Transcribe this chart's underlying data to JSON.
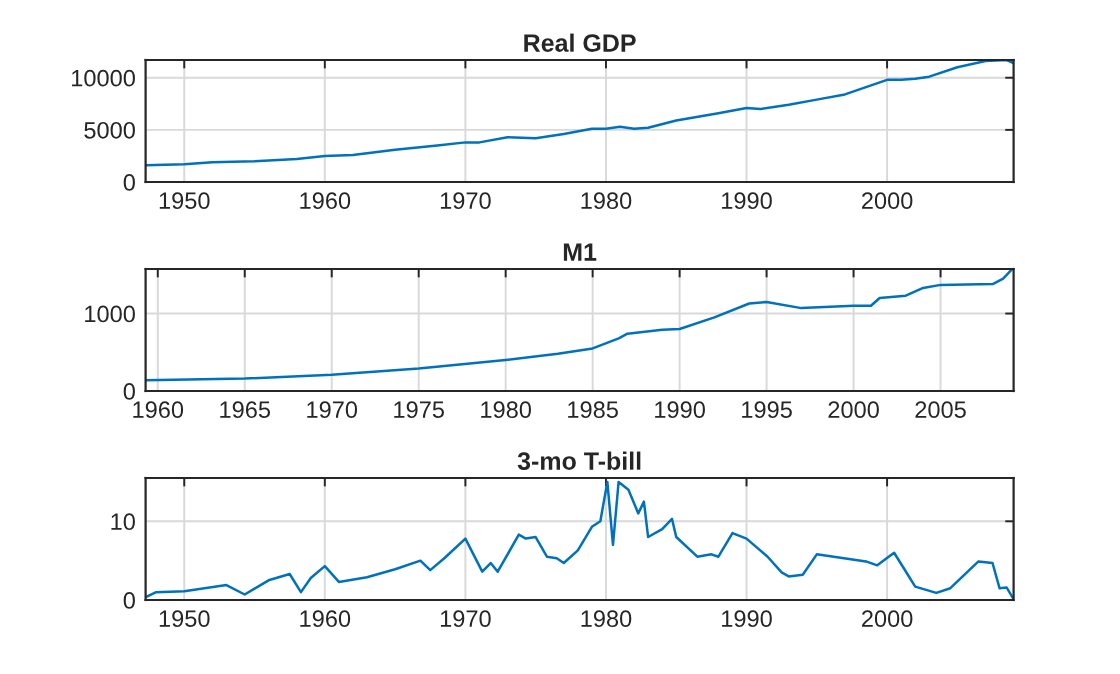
{
  "chart_data": [
    {
      "type": "line",
      "title": "Real GDP",
      "x": [
        1947.25,
        1950,
        1952,
        1955,
        1958,
        1960,
        1962,
        1965,
        1968,
        1970,
        1971,
        1973,
        1975,
        1977,
        1979,
        1980,
        1981,
        1982,
        1983,
        1985,
        1988,
        1990,
        1991,
        1993,
        1995,
        1997,
        2000,
        2001,
        2002,
        2003,
        2005,
        2007,
        2008.5,
        2009
      ],
      "series": [
        {
          "color": "#0072bd",
          "values": [
            1600,
            1700,
            1900,
            2000,
            2200,
            2500,
            2600,
            3100,
            3500,
            3800,
            3800,
            4300,
            4200,
            4600,
            5100,
            5100,
            5300,
            5100,
            5200,
            5900,
            6600,
            7100,
            7000,
            7400,
            7900,
            8400,
            9800,
            9800,
            9900,
            10100,
            11000,
            11600,
            11700,
            11400
          ]
        }
      ],
      "xlim": [
        1947.25,
        2009.0
      ],
      "ylim": [
        0,
        11700
      ],
      "xticks": [
        1950,
        1960,
        1970,
        1980,
        1990,
        2000
      ],
      "yticks": [
        0,
        5000,
        10000
      ],
      "grid": true
    },
    {
      "type": "line",
      "title": "M1",
      "x": [
        1959.3,
        1965,
        1970,
        1975,
        1980,
        1983,
        1985,
        1986.5,
        1987,
        1989,
        1990,
        1992,
        1994,
        1995,
        1997,
        2000,
        2001,
        2001.5,
        2003,
        2004,
        2005,
        2008,
        2008.6,
        2009.1
      ],
      "series": [
        {
          "color": "#0072bd",
          "values": [
            140,
            160,
            210,
            290,
            400,
            480,
            550,
            680,
            740,
            790,
            800,
            950,
            1130,
            1150,
            1070,
            1100,
            1100,
            1200,
            1230,
            1330,
            1370,
            1380,
            1450,
            1570
          ]
        }
      ],
      "xlim": [
        1959.3,
        2009.2
      ],
      "ylim": [
        0,
        1575
      ],
      "xticks": [
        1960,
        1965,
        1970,
        1975,
        1980,
        1985,
        1990,
        1995,
        2000,
        2005
      ],
      "yticks": [
        0,
        1000
      ],
      "grid": true
    },
    {
      "type": "line",
      "title": "3-mo T-bill",
      "x": [
        1947.3,
        1948,
        1950,
        1953,
        1954.3,
        1956,
        1957.5,
        1958.3,
        1959,
        1960,
        1961,
        1963,
        1965,
        1966.8,
        1967.5,
        1968.5,
        1970,
        1971.2,
        1971.8,
        1972.3,
        1973.8,
        1974.3,
        1975,
        1975.8,
        1976.5,
        1977,
        1978,
        1979,
        1979.6,
        1980.1,
        1980.5,
        1980.9,
        1981.6,
        1982.3,
        1982.7,
        1983,
        1984,
        1984.7,
        1985,
        1986.5,
        1987.5,
        1988,
        1989,
        1990,
        1991.5,
        1992.5,
        1993,
        1994,
        1995,
        1998.5,
        1999.3,
        2000.5,
        2001.2,
        2002,
        2003.5,
        2004.5,
        2006.5,
        2007.5,
        2008,
        2008.5,
        2009
      ],
      "series": [
        {
          "color": "#0072bd",
          "values": [
            0.4,
            1.0,
            1.1,
            1.9,
            0.7,
            2.5,
            3.3,
            1.0,
            2.8,
            4.3,
            2.3,
            2.9,
            3.9,
            5.0,
            3.8,
            5.3,
            7.8,
            3.6,
            4.7,
            3.6,
            8.3,
            7.8,
            8.0,
            5.5,
            5.3,
            4.7,
            6.3,
            9.3,
            10.0,
            15.0,
            7.0,
            15.0,
            14.0,
            11.0,
            12.5,
            8.0,
            9.0,
            10.3,
            8.0,
            5.5,
            5.8,
            5.5,
            8.5,
            7.8,
            5.5,
            3.5,
            3.0,
            3.2,
            5.8,
            4.9,
            4.4,
            6.0,
            4.0,
            1.7,
            0.9,
            1.5,
            4.9,
            4.7,
            1.5,
            1.6,
            0.1
          ]
        }
      ],
      "xlim": [
        1947.25,
        2009.0
      ],
      "ylim": [
        0,
        15.5
      ],
      "xticks": [
        1950,
        1960,
        1970,
        1980,
        1990,
        2000
      ],
      "yticks": [
        0,
        10
      ],
      "grid": true
    }
  ]
}
